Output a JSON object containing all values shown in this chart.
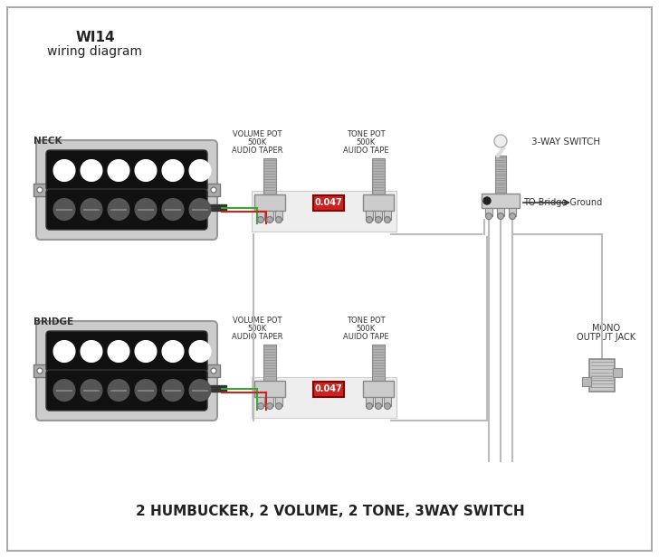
{
  "title_line1": "WI14",
  "title_line2": "wiring diagram",
  "bottom_text": "2 HUMBUCKER, 2 VOLUME, 2 TONE, 3WAY SWITCH",
  "bg_color": "#ffffff",
  "border_color": "#aaaaaa",
  "neck_label": "NECK",
  "bridge_label": "BRIDGE",
  "vol_label_neck": [
    "VOLUME POT",
    "500K",
    "AUDIO TAPER"
  ],
  "tone_label_neck": [
    "TONE POT",
    "500K",
    "AUIDO TAPE"
  ],
  "vol_label_bridge": [
    "VOLUME POT",
    "500K",
    "AUDIO TAPER"
  ],
  "tone_label_bridge": [
    "TONE POT",
    "500K",
    "AUIDO TAPE"
  ],
  "cap_value": "0.047",
  "switch_label": "3-WAY SWITCH",
  "ground_label": "TO Bridge Ground",
  "jack_label": [
    "MONO",
    "OUTPUT JACK"
  ],
  "wire_green": "#33aa33",
  "wire_red": "#cc2222",
  "wire_gray": "#bbbbbb",
  "wire_dark": "#555555",
  "cap_bg": "#cc2222",
  "cap_text_color": "#ffffff",
  "pickup_frame": "#cccccc",
  "pickup_body": "#111111",
  "pickup_pole_top": "#ffffff",
  "pickup_pole_bot": "#555555",
  "pot_shaft": "#b0b0b0",
  "pot_base": "#cccccc",
  "switch_body": "#b0b0b0",
  "jack_outer": "#c0c0c0"
}
